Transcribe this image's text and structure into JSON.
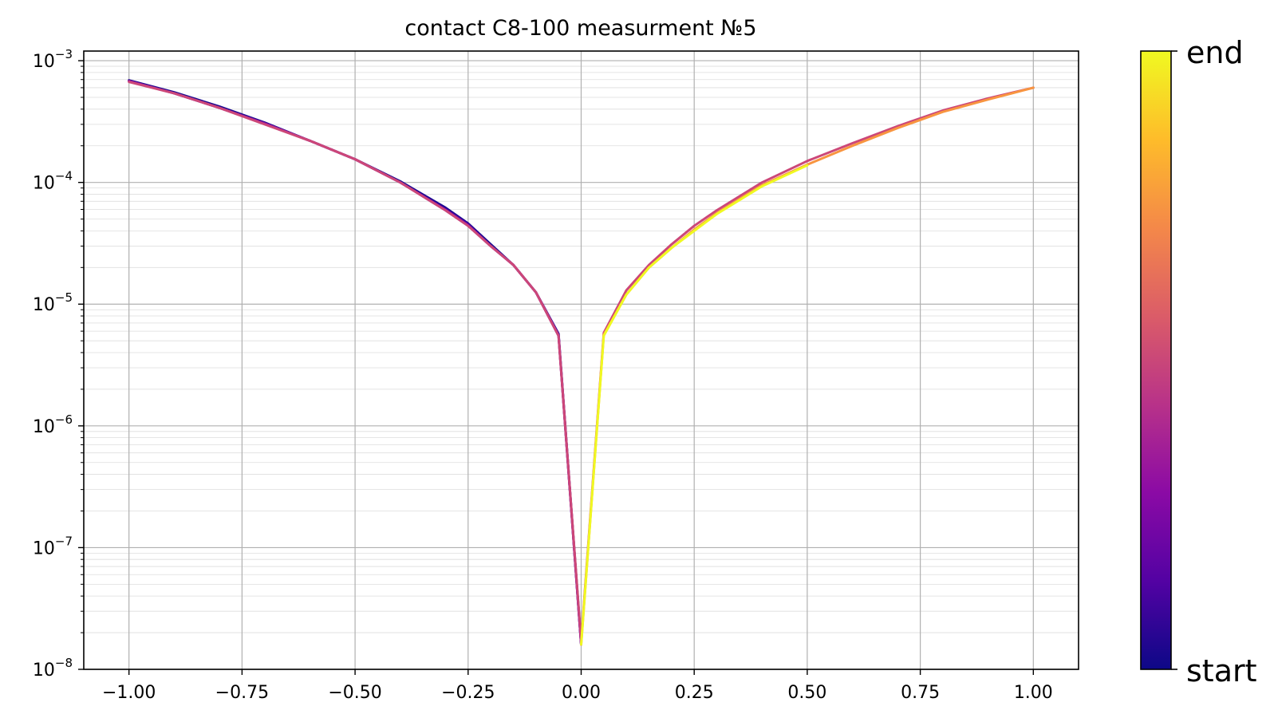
{
  "chart_data": {
    "type": "line",
    "title": "contact C8-100 measurment №5",
    "xlabel": "",
    "ylabel": "",
    "xlim": [
      -1.1,
      1.1
    ],
    "ylim": [
      1e-08,
      0.0012
    ],
    "yscale": "log",
    "grid": "major and minor",
    "x_ticks": [
      "−1.00",
      "−0.75",
      "−0.50",
      "−0.25",
      "0.00",
      "0.25",
      "0.50",
      "0.75",
      "1.00"
    ],
    "y_ticks": [
      {
        "base": "10",
        "exp": "−3"
      },
      {
        "base": "10",
        "exp": "−4"
      },
      {
        "base": "10",
        "exp": "−5"
      },
      {
        "base": "10",
        "exp": "−6"
      },
      {
        "base": "10",
        "exp": "−7"
      },
      {
        "base": "10",
        "exp": "−8"
      }
    ],
    "colorbar": {
      "colormap": "plasma",
      "top_label": "end",
      "bottom_label": "start",
      "stops": [
        "#0d0887",
        "#5302a3",
        "#8b0aa5",
        "#b83289",
        "#db5c68",
        "#f48849",
        "#febc2a",
        "#f0f921"
      ]
    },
    "series": [
      {
        "color": "#1a0a8f",
        "x": [
          -1.0,
          -0.9,
          -0.8,
          -0.7,
          -0.6,
          -0.5,
          -0.4,
          -0.3,
          -0.25,
          -0.2,
          -0.15,
          -0.1,
          -0.05,
          0.0
        ],
        "y": [
          0.00069,
          0.00055,
          0.00042,
          0.00031,
          0.00022,
          0.000155,
          0.000102,
          6.2e-05,
          4.6e-05,
          3.1e-05,
          2.1e-05,
          1.25e-05,
          5.7e-06,
          1.6e-08
        ]
      },
      {
        "color": "#6a00a8",
        "x": [
          -1.0,
          -0.9,
          -0.8,
          -0.7,
          -0.6,
          -0.5,
          -0.4,
          -0.3,
          -0.25,
          -0.2,
          -0.15,
          -0.1,
          -0.05,
          0.0
        ],
        "y": [
          0.00068,
          0.00054,
          0.00041,
          0.000305,
          0.00022,
          0.000155,
          0.0001,
          6e-05,
          4.5e-05,
          3e-05,
          2.1e-05,
          1.25e-05,
          5.6e-06,
          1.6e-08
        ]
      },
      {
        "color": "#9c179e",
        "x": [
          -1.0,
          -0.9,
          -0.8,
          -0.7,
          -0.6,
          -0.5,
          -0.4,
          -0.3,
          -0.25,
          -0.2,
          -0.15,
          -0.1,
          -0.05,
          0.0
        ],
        "y": [
          0.00068,
          0.00054,
          0.00041,
          0.000305,
          0.00022,
          0.000155,
          0.0001,
          5.9e-05,
          4.4e-05,
          3e-05,
          2.1e-05,
          1.25e-05,
          5.5e-06,
          1.6e-08
        ]
      },
      {
        "color": "#cc4778",
        "x": [
          -1.0,
          -0.9,
          -0.8,
          -0.7,
          -0.6,
          -0.5,
          -0.4,
          -0.3,
          -0.25,
          -0.2,
          -0.15,
          -0.1,
          -0.05,
          0.0,
          0.05,
          0.1,
          0.15,
          0.2,
          0.25,
          0.3,
          0.4,
          0.5,
          0.6,
          0.7,
          0.8,
          0.9,
          1.0
        ],
        "y": [
          0.00067,
          0.00054,
          0.00041,
          0.0003,
          0.00022,
          0.000155,
          0.0001,
          5.9e-05,
          4.4e-05,
          3e-05,
          2.1e-05,
          1.25e-05,
          5.5e-06,
          1.7e-08,
          5.8e-06,
          1.3e-05,
          2.1e-05,
          3.1e-05,
          4.4e-05,
          5.9e-05,
          0.0001,
          0.00015,
          0.00021,
          0.00029,
          0.00039,
          0.00049,
          0.0006
        ]
      },
      {
        "color": "#f89540",
        "x": [
          0.0,
          0.05,
          0.1,
          0.15,
          0.2,
          0.25,
          0.3,
          0.4,
          0.5,
          0.6,
          0.7,
          0.8,
          0.9,
          1.0
        ],
        "y": [
          1.6e-08,
          5.6e-06,
          1.2e-05,
          2e-05,
          2.9e-05,
          4.1e-05,
          5.6e-05,
          9.5e-05,
          0.00014,
          0.0002,
          0.00028,
          0.00038,
          0.00048,
          0.0006
        ]
      },
      {
        "color": "#f0f921",
        "x": [
          0.0,
          0.05,
          0.1,
          0.15,
          0.2,
          0.25,
          0.3,
          0.4,
          0.5
        ],
        "y": [
          1.6e-08,
          5.5e-06,
          1.2e-05,
          2e-05,
          2.9e-05,
          4e-05,
          5.5e-05,
          9.3e-05,
          0.000138
        ]
      }
    ]
  }
}
